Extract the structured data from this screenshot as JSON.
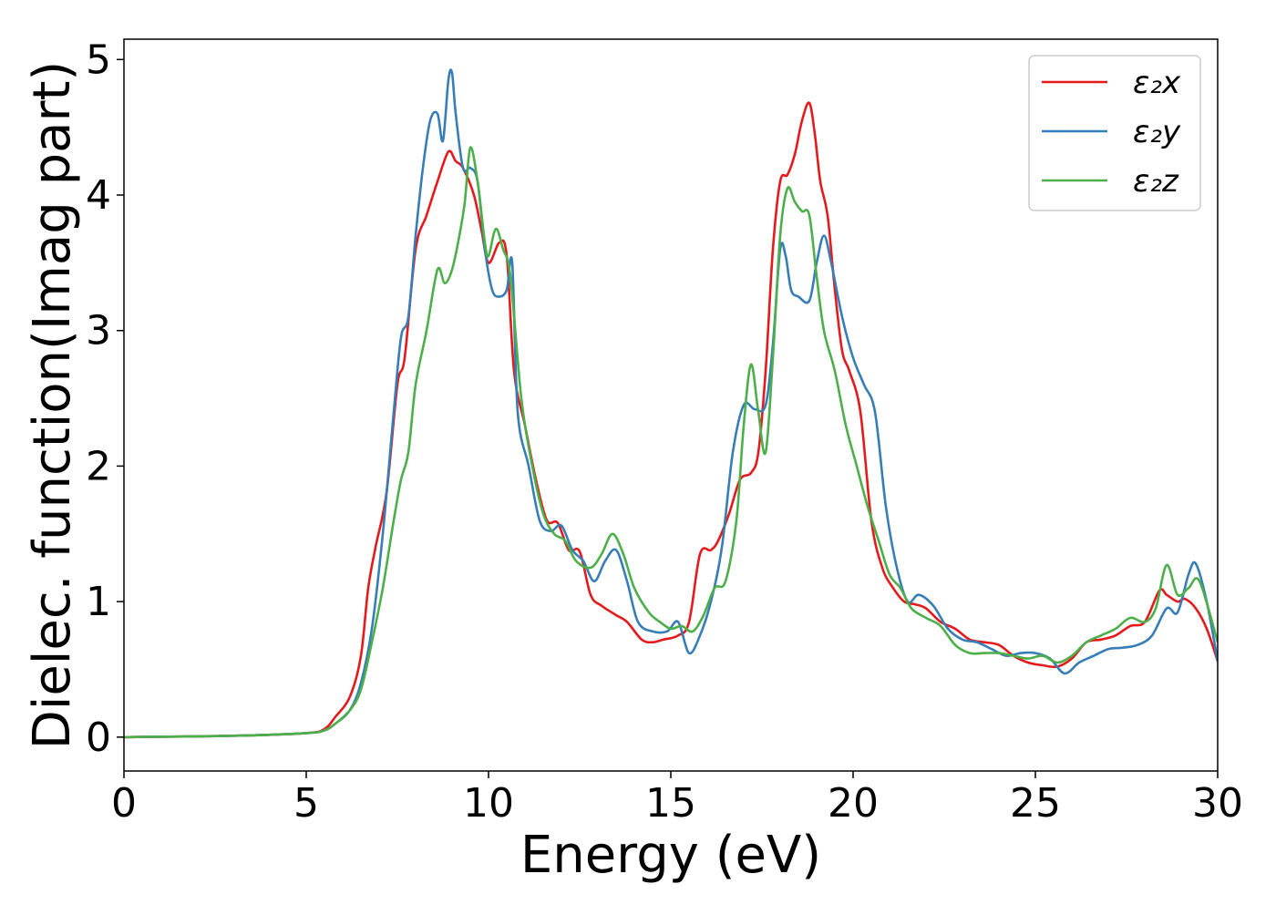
{
  "chart_data": {
    "type": "line",
    "title": "",
    "xlabel": "Energy (eV)",
    "ylabel": "Dielec. function(Imag part)",
    "xlim": [
      0,
      30
    ],
    "ylim": [
      -0.25,
      5.15
    ],
    "xticks": [
      0,
      5,
      10,
      15,
      20,
      25,
      30
    ],
    "xtick_labels": [
      "0",
      "5",
      "10",
      "15",
      "20",
      "25",
      "30"
    ],
    "yticks": [
      0,
      1,
      2,
      3,
      4,
      5
    ],
    "ytick_labels": [
      "0",
      "1",
      "2",
      "3",
      "4",
      "5"
    ],
    "grid": false,
    "legend_position": "top-right",
    "series": [
      {
        "name": "ε₂x",
        "color": "#e41a1c",
        "x": [
          0,
          3,
          5,
          5.5,
          5.8,
          6.2,
          6.5,
          6.7,
          6.9,
          7.2,
          7.5,
          7.7,
          8.0,
          8.3,
          8.6,
          8.9,
          9.1,
          9.3,
          9.6,
          9.8,
          10.0,
          10.3,
          10.5,
          10.7,
          11.0,
          11.3,
          11.6,
          11.9,
          12.2,
          12.5,
          12.8,
          13.1,
          13.5,
          13.8,
          14.2,
          14.5,
          14.8,
          15.2,
          15.5,
          15.8,
          16.1,
          16.3,
          16.6,
          16.9,
          17.2,
          17.4,
          17.6,
          17.8,
          18.0,
          18.2,
          18.4,
          18.6,
          18.8,
          18.95,
          19.1,
          19.3,
          19.5,
          19.7,
          19.9,
          20.2,
          20.5,
          20.8,
          21.1,
          21.4,
          21.7,
          22.0,
          22.4,
          22.8,
          23.2,
          23.6,
          24.0,
          24.4,
          24.8,
          25.2,
          25.6,
          26.0,
          26.4,
          26.8,
          27.2,
          27.6,
          28.0,
          28.4,
          28.6,
          28.9,
          29.1,
          29.4,
          29.7,
          30.0
        ],
        "y": [
          0,
          0.01,
          0.03,
          0.06,
          0.15,
          0.3,
          0.6,
          1.1,
          1.4,
          1.8,
          2.6,
          2.8,
          3.6,
          3.85,
          4.1,
          4.32,
          4.25,
          4.2,
          4.0,
          3.75,
          3.5,
          3.65,
          3.55,
          2.7,
          2.3,
          1.9,
          1.6,
          1.58,
          1.38,
          1.37,
          1.05,
          0.97,
          0.9,
          0.85,
          0.72,
          0.7,
          0.72,
          0.75,
          0.85,
          1.35,
          1.38,
          1.45,
          1.65,
          1.9,
          1.95,
          2.1,
          2.7,
          3.6,
          4.1,
          4.15,
          4.3,
          4.55,
          4.68,
          4.45,
          4.1,
          3.85,
          3.3,
          2.85,
          2.7,
          2.4,
          1.6,
          1.25,
          1.1,
          1.0,
          0.98,
          0.95,
          0.85,
          0.8,
          0.72,
          0.7,
          0.68,
          0.6,
          0.55,
          0.53,
          0.52,
          0.58,
          0.7,
          0.72,
          0.75,
          0.82,
          0.85,
          1.08,
          1.05,
          1.0,
          1.02,
          0.95,
          0.8,
          0.56
        ]
      },
      {
        "name": "ε₂y",
        "color": "#377eb8",
        "x": [
          0,
          3,
          5,
          5.5,
          5.8,
          6.2,
          6.5,
          6.8,
          7.1,
          7.4,
          7.6,
          7.8,
          8.0,
          8.2,
          8.4,
          8.6,
          8.75,
          8.9,
          9.0,
          9.1,
          9.3,
          9.5,
          9.7,
          9.9,
          10.1,
          10.3,
          10.5,
          10.65,
          10.8,
          11.1,
          11.4,
          11.7,
          12.0,
          12.3,
          12.6,
          12.9,
          13.2,
          13.5,
          13.8,
          14.1,
          14.5,
          14.9,
          15.2,
          15.5,
          15.8,
          16.1,
          16.4,
          16.7,
          17.0,
          17.3,
          17.6,
          17.8,
          18.0,
          18.15,
          18.3,
          18.5,
          18.8,
          19.0,
          19.2,
          19.4,
          19.7,
          20.0,
          20.3,
          20.6,
          20.9,
          21.2,
          21.5,
          21.8,
          22.2,
          22.6,
          23.0,
          23.4,
          23.8,
          24.2,
          24.6,
          25.0,
          25.4,
          25.8,
          26.2,
          26.6,
          27.0,
          27.4,
          27.8,
          28.2,
          28.6,
          28.9,
          29.2,
          29.4,
          29.7,
          30.0
        ],
        "y": [
          0,
          0.01,
          0.03,
          0.05,
          0.1,
          0.2,
          0.4,
          0.8,
          1.5,
          2.4,
          2.95,
          3.1,
          3.7,
          4.2,
          4.55,
          4.6,
          4.4,
          4.85,
          4.9,
          4.6,
          4.2,
          4.2,
          4.1,
          3.6,
          3.3,
          3.25,
          3.3,
          3.5,
          2.4,
          2.0,
          1.6,
          1.52,
          1.56,
          1.38,
          1.3,
          1.15,
          1.3,
          1.38,
          1.15,
          0.85,
          0.78,
          0.78,
          0.85,
          0.62,
          0.75,
          1.0,
          1.4,
          2.1,
          2.45,
          2.42,
          2.45,
          2.9,
          3.6,
          3.55,
          3.3,
          3.25,
          3.22,
          3.5,
          3.7,
          3.5,
          3.1,
          2.8,
          2.6,
          2.4,
          1.7,
          1.25,
          1.0,
          1.05,
          0.97,
          0.8,
          0.72,
          0.7,
          0.65,
          0.6,
          0.62,
          0.62,
          0.58,
          0.47,
          0.55,
          0.6,
          0.65,
          0.66,
          0.68,
          0.75,
          0.95,
          0.92,
          1.2,
          1.28,
          1.0,
          0.56
        ]
      },
      {
        "name": "ε₂z",
        "color": "#4daf4a",
        "x": [
          0,
          3,
          5,
          5.5,
          5.8,
          6.2,
          6.5,
          6.8,
          7.1,
          7.4,
          7.6,
          7.8,
          8.0,
          8.3,
          8.6,
          8.8,
          9.0,
          9.2,
          9.35,
          9.5,
          9.7,
          9.9,
          10.0,
          10.2,
          10.4,
          10.6,
          10.9,
          11.2,
          11.5,
          11.8,
          12.1,
          12.4,
          12.8,
          13.1,
          13.4,
          13.7,
          14.0,
          14.4,
          14.7,
          15.0,
          15.3,
          15.6,
          15.9,
          16.2,
          16.5,
          16.8,
          17.0,
          17.2,
          17.4,
          17.6,
          17.8,
          18.0,
          18.2,
          18.4,
          18.6,
          18.8,
          19.0,
          19.2,
          19.5,
          19.8,
          20.1,
          20.4,
          20.7,
          21.0,
          21.3,
          21.6,
          22.0,
          22.4,
          22.8,
          23.2,
          23.6,
          24.0,
          24.4,
          24.8,
          25.2,
          25.6,
          26.0,
          26.4,
          26.8,
          27.2,
          27.6,
          28.0,
          28.3,
          28.6,
          28.9,
          29.2,
          29.5,
          30.0
        ],
        "y": [
          0,
          0.01,
          0.03,
          0.05,
          0.1,
          0.2,
          0.35,
          0.7,
          1.1,
          1.6,
          1.9,
          2.1,
          2.6,
          3.0,
          3.45,
          3.35,
          3.45,
          3.7,
          3.95,
          4.35,
          4.1,
          3.65,
          3.55,
          3.75,
          3.6,
          3.4,
          2.5,
          2.0,
          1.65,
          1.5,
          1.45,
          1.3,
          1.25,
          1.35,
          1.5,
          1.35,
          1.1,
          0.92,
          0.85,
          0.8,
          0.82,
          0.78,
          0.9,
          1.1,
          1.15,
          1.6,
          2.3,
          2.75,
          2.4,
          2.1,
          2.8,
          3.7,
          4.05,
          3.95,
          3.88,
          3.85,
          3.4,
          3.0,
          2.7,
          2.3,
          2.0,
          1.7,
          1.45,
          1.2,
          1.1,
          0.95,
          0.88,
          0.82,
          0.68,
          0.62,
          0.62,
          0.62,
          0.6,
          0.58,
          0.6,
          0.55,
          0.6,
          0.7,
          0.75,
          0.8,
          0.88,
          0.85,
          0.95,
          1.27,
          1.05,
          1.1,
          1.15,
          0.7
        ]
      }
    ]
  }
}
